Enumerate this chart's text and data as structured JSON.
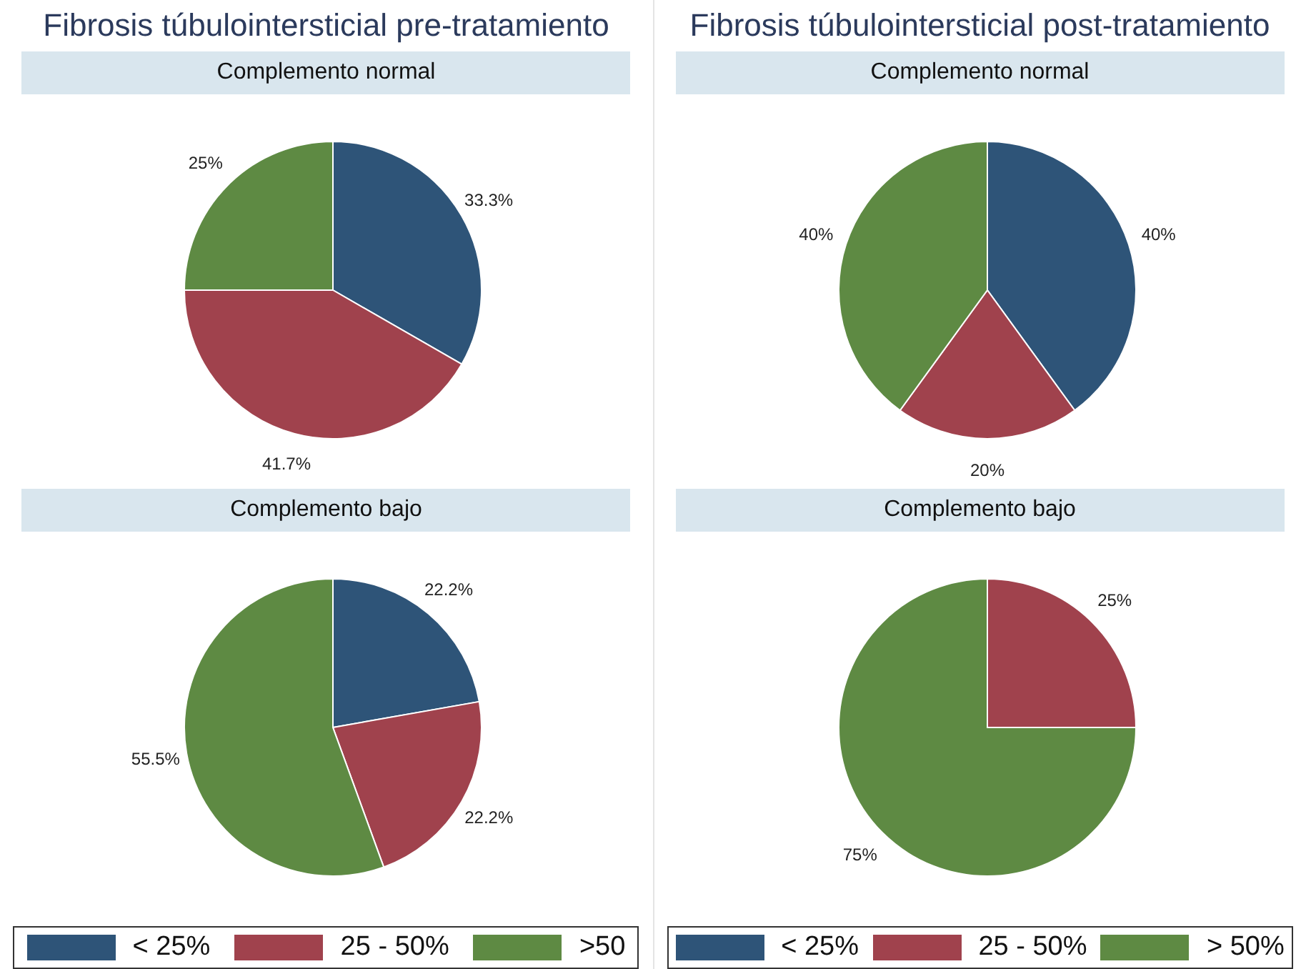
{
  "chart_data": [
    {
      "type": "pie",
      "title": "Fibrosis túbulointersticial pre-tratamiento",
      "subtitle": "Complemento normal",
      "categories": [
        null,
        null,
        null
      ],
      "values": [
        33.3,
        41.7,
        25
      ],
      "colors": [
        "#2e5478",
        "#a0424d",
        "#5e8a43"
      ],
      "value_labels": [
        "33.3%",
        "41.7%",
        "25%"
      ]
    },
    {
      "type": "pie",
      "subtitle": "Complemento bajo",
      "categories": [
        "< 25%",
        "25 - 50%",
        ">50"
      ],
      "values": [
        22.2,
        22.2,
        55.5
      ],
      "colors": [
        "#2e5478",
        "#a0424d",
        "#5e8a43"
      ],
      "value_labels": [
        "22.2%",
        "22.2%",
        "55.5%"
      ],
      "legend": "bottom"
    },
    {
      "type": "pie",
      "title": "Fibrosis túbulointersticial post-tratamiento",
      "subtitle": "Complemento normal",
      "categories": [
        null,
        null,
        null
      ],
      "values": [
        40,
        20,
        40
      ],
      "colors": [
        "#2e5478",
        "#a0424d",
        "#5e8a43"
      ],
      "value_labels": [
        "40%",
        "20%",
        "40%"
      ]
    },
    {
      "type": "pie",
      "subtitle": "Complemento bajo",
      "categories": [
        "< 25%",
        "25 - 50%",
        "> 50%"
      ],
      "values": [
        0,
        25,
        75
      ],
      "colors": [
        "#2e5478",
        "#a0424d",
        "#5e8a43"
      ],
      "value_labels": [
        null,
        "25%",
        "75%"
      ],
      "legend": "bottom"
    }
  ]
}
